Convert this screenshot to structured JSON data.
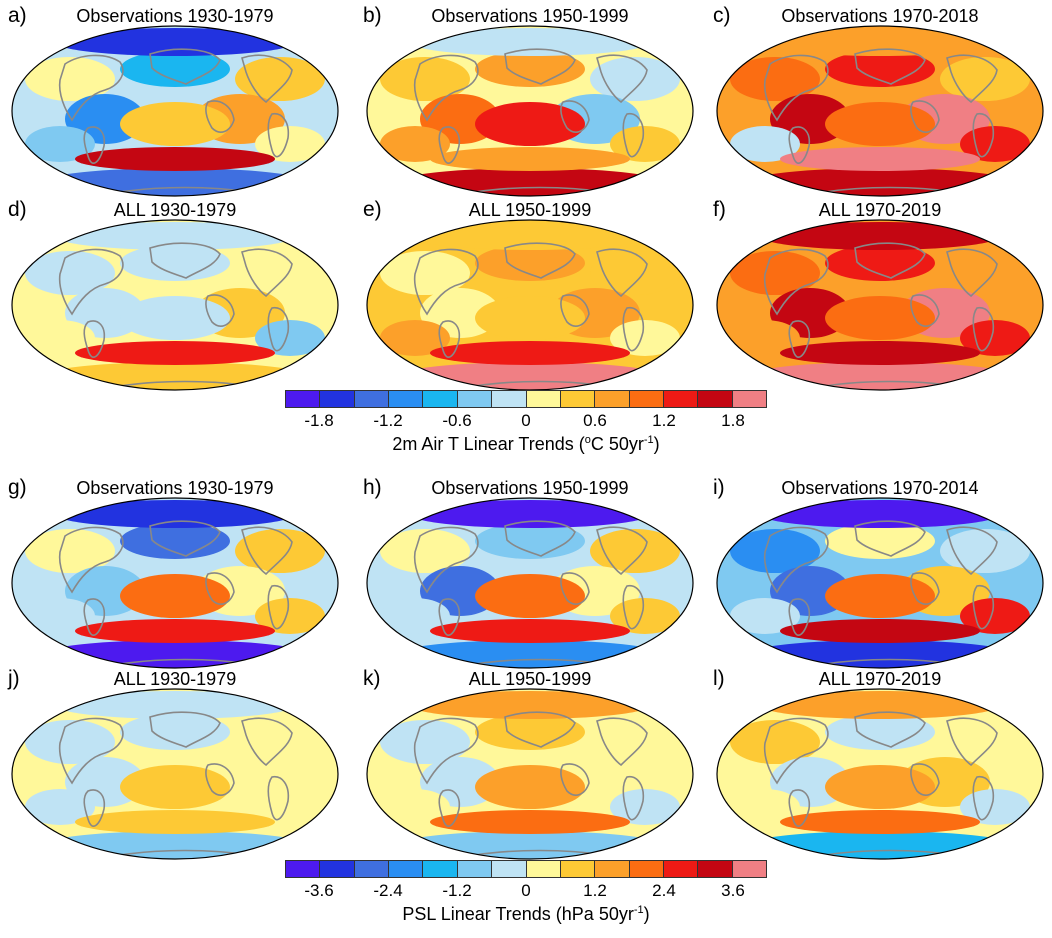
{
  "palette": [
    "#4d1aef",
    "#2233e0",
    "#3f6fe0",
    "#2a8ef2",
    "#1ab6f0",
    "#7fc9f1",
    "#bfe3f4",
    "#fff89a",
    "#fdc935",
    "#fca02a",
    "#fb6d12",
    "#ee1a15",
    "#c40612",
    "#f07f84"
  ],
  "land_color": "#888888",
  "temperature": {
    "ticks": [
      "-1.8",
      "-1.2",
      "-0.6",
      "0",
      "0.6",
      "1.2",
      "1.8"
    ],
    "title_main": "2m Air T Linear Trends (",
    "title_deg": "o",
    "title_unit": "C 50yr",
    "title_exp": "-1",
    "title_close": ")",
    "panels": [
      {
        "label": "a)",
        "title": "Observations 1930-1979",
        "base": 6,
        "patches": [
          7,
          4,
          8,
          3,
          9,
          8,
          5,
          7,
          1,
          2,
          12
        ]
      },
      {
        "label": "b)",
        "title": "Observations 1950-1999",
        "base": 7,
        "patches": [
          8,
          9,
          6,
          10,
          5,
          11,
          9,
          8,
          6,
          12,
          9
        ]
      },
      {
        "label": "c)",
        "title": "Observations 1970-2018",
        "base": 9,
        "patches": [
          10,
          11,
          8,
          12,
          13,
          10,
          6,
          11,
          9,
          12,
          13
        ]
      },
      {
        "label": "d)",
        "title": "ALL 1930-1979",
        "base": 7,
        "patches": [
          6,
          6,
          7,
          6,
          8,
          6,
          7,
          5,
          6,
          8,
          11
        ]
      },
      {
        "label": "e)",
        "title": "ALL 1950-1999",
        "base": 8,
        "patches": [
          7,
          9,
          8,
          7,
          9,
          8,
          9,
          7,
          8,
          13,
          11
        ]
      },
      {
        "label": "f)",
        "title": "ALL 1970-2019",
        "base": 9,
        "patches": [
          10,
          11,
          9,
          12,
          13,
          10,
          9,
          11,
          12,
          13,
          12
        ]
      }
    ]
  },
  "pressure": {
    "ticks": [
      "-3.6",
      "-2.4",
      "-1.2",
      "0",
      "1.2",
      "2.4",
      "3.6"
    ],
    "title_main": "PSL Linear Trends (hPa 50yr",
    "title_exp": "-1",
    "title_close": ")",
    "panels": [
      {
        "label": "g)",
        "title": "Observations 1930-1979",
        "base": 6,
        "patches": [
          7,
          2,
          8,
          5,
          7,
          10,
          6,
          8,
          1,
          0,
          11
        ]
      },
      {
        "label": "h)",
        "title": "Observations 1950-1999",
        "base": 6,
        "patches": [
          7,
          5,
          8,
          2,
          7,
          10,
          6,
          8,
          0,
          3,
          11
        ]
      },
      {
        "label": "i)",
        "title": "Observations 1970-2014",
        "base": 5,
        "patches": [
          3,
          7,
          6,
          2,
          8,
          10,
          6,
          11,
          0,
          1,
          12
        ]
      },
      {
        "label": "j)",
        "title": "ALL 1930-1979",
        "base": 7,
        "patches": [
          6,
          6,
          7,
          6,
          7,
          8,
          6,
          7,
          6,
          5,
          8
        ]
      },
      {
        "label": "k)",
        "title": "ALL 1950-1999",
        "base": 7,
        "patches": [
          6,
          8,
          7,
          6,
          7,
          9,
          7,
          6,
          9,
          5,
          10
        ]
      },
      {
        "label": "l)",
        "title": "ALL 1970-2019",
        "base": 7,
        "patches": [
          8,
          6,
          7,
          6,
          8,
          9,
          7,
          6,
          9,
          4,
          10
        ]
      }
    ]
  }
}
